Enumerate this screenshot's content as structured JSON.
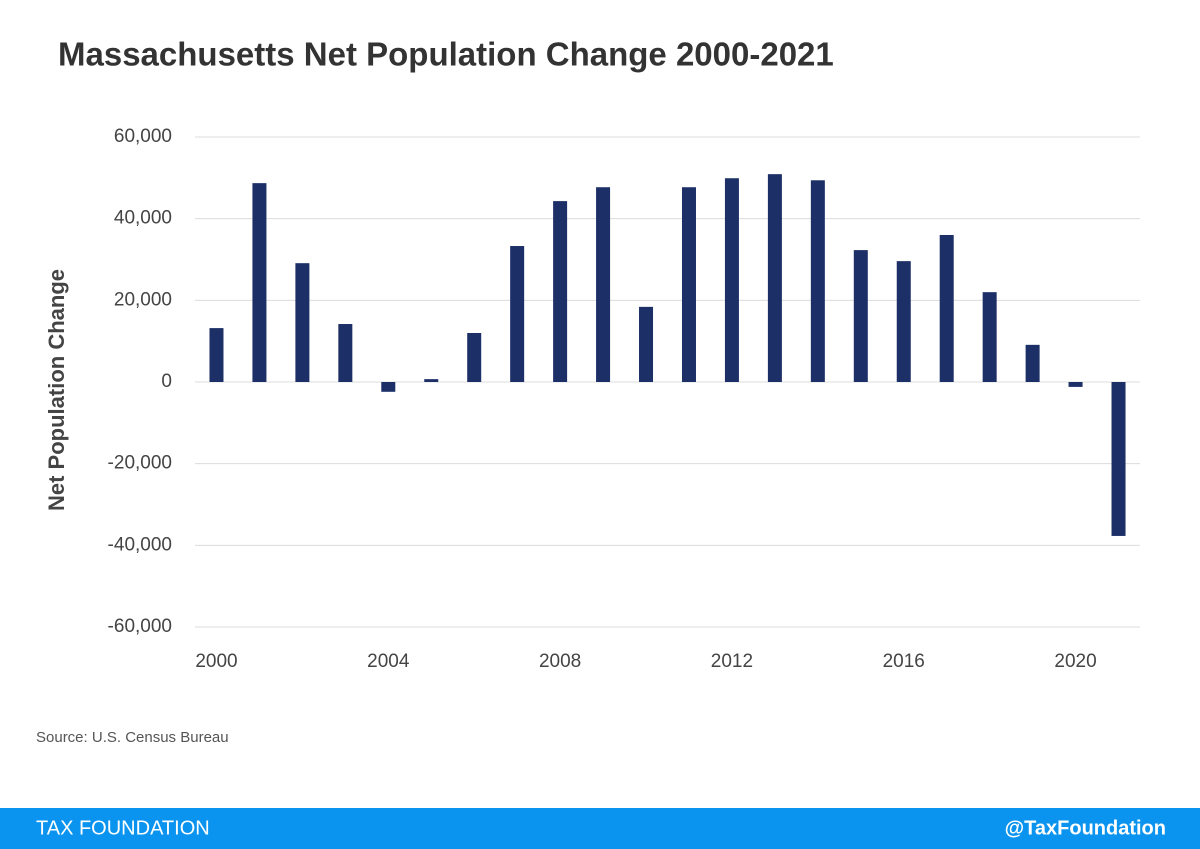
{
  "chart_data": {
    "type": "bar",
    "title": "Massachusetts Net Population Change 2000-2021",
    "y_label": "Net Population Change",
    "source": "Source: U.S. Census Bureau",
    "x": [
      2000,
      2001,
      2002,
      2003,
      2004,
      2005,
      2006,
      2007,
      2008,
      2009,
      2010,
      2011,
      2012,
      2013,
      2014,
      2015,
      2016,
      2017,
      2018,
      2019,
      2020,
      2021
    ],
    "values": [
      13200,
      48700,
      29100,
      14200,
      -2400,
      700,
      12000,
      33300,
      44300,
      47700,
      18400,
      47700,
      49900,
      50900,
      49400,
      32300,
      29600,
      36000,
      22000,
      9100,
      -1200,
      -37700
    ],
    "color": "#1c2f66",
    "xlim": [
      1999.5,
      2021.5
    ],
    "xticks": [
      2000,
      2004,
      2008,
      2012,
      2016,
      2020
    ],
    "ylim": [
      -60000,
      60000
    ],
    "yticks": [
      {
        "value": -60000,
        "label": "-60,000"
      },
      {
        "value": -40000,
        "label": "-40,000"
      },
      {
        "value": -20000,
        "label": "-20,000"
      },
      0,
      {
        "value": 20000,
        "label": "20,000"
      },
      {
        "value": 40000,
        "label": "40,000"
      },
      {
        "value": 60000,
        "label": "60,000"
      }
    ],
    "grid": true
  },
  "footer": {
    "left": "TAX FOUNDATION",
    "right": "@TaxFoundation"
  }
}
